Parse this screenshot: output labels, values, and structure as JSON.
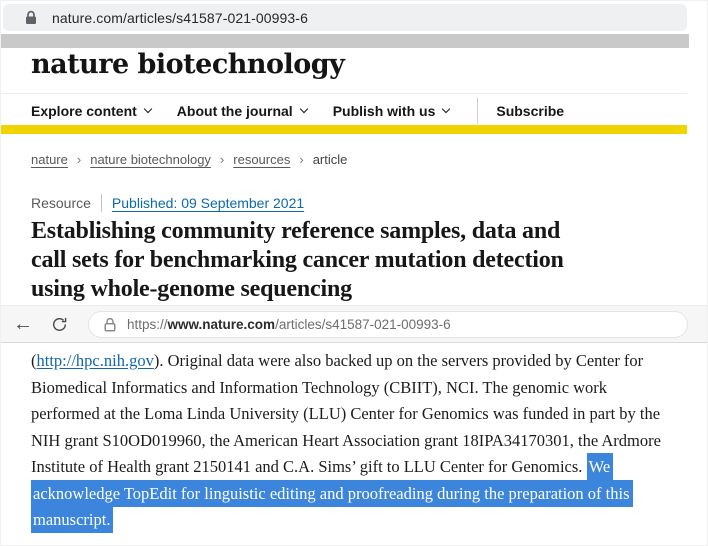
{
  "browser_top": {
    "url": "nature.com/articles/s41587-021-00993-6"
  },
  "site_header": {
    "logo": "nature biotechnology",
    "nav_items": [
      {
        "label": "Explore content",
        "dropdown": true
      },
      {
        "label": "About the journal",
        "dropdown": true
      },
      {
        "label": "Publish with us",
        "dropdown": true
      }
    ],
    "subscribe_label": "Subscribe"
  },
  "breadcrumb": {
    "separator": "›",
    "items": [
      {
        "label": "nature",
        "link": true
      },
      {
        "label": "nature biotechnology",
        "link": true
      },
      {
        "label": "resources",
        "link": true
      },
      {
        "label": "article",
        "link": false
      }
    ]
  },
  "article_meta": {
    "type_label": "Resource",
    "published": "Published: 09 September 2021"
  },
  "article_title": {
    "full": "Establishing community reference samples, data and call sets for benchmarking cancer mutation detection using whole-genome sequencing",
    "lines": [
      "Establishing community reference samples, data and",
      "call sets for benchmarking cancer mutation detection",
      "using whole-genome sequencing"
    ]
  },
  "browser_inner": {
    "url_scheme": "https://",
    "url_domain": "www.nature.com",
    "url_path": "/articles/s41587-021-00993-6"
  },
  "body_text": {
    "lines": [
      [
        {
          "t": "(",
          "s": "text"
        },
        {
          "t": "http://hpc.nih.gov",
          "s": "link"
        },
        {
          "t": "). Original data were also backed up on the servers provided by Center for",
          "s": "text"
        }
      ],
      [
        {
          "t": "Biomedical Informatics and Information Technology (CBIIT), NCI. The genomic work",
          "s": "text"
        }
      ],
      [
        {
          "t": "performed at the Loma Linda University (LLU) Center for Genomics was funded in part by the",
          "s": "text"
        }
      ],
      [
        {
          "t": "NIH grant S10OD019960, the American Heart Association grant 18IPA34170301, the Ardmore",
          "s": "text"
        }
      ],
      [
        {
          "t": "Institute of Health grant 2150141 and C.A. Sims’ gift to LLU Center for Genomics. ",
          "s": "text"
        },
        {
          "t": "We",
          "s": "highlight"
        }
      ],
      [
        {
          "t": "acknowledge TopEdit for linguistic editing and proofreading during the preparation of this",
          "s": "highlight"
        }
      ],
      [
        {
          "t": "manuscript.",
          "s": "highlight"
        }
      ]
    ]
  },
  "colors": {
    "highlight_blue": "#3c85dc",
    "link_blue": "#1166ad",
    "published_link_blue": "#0b69ac",
    "accent_yellow": "#f0d400"
  }
}
